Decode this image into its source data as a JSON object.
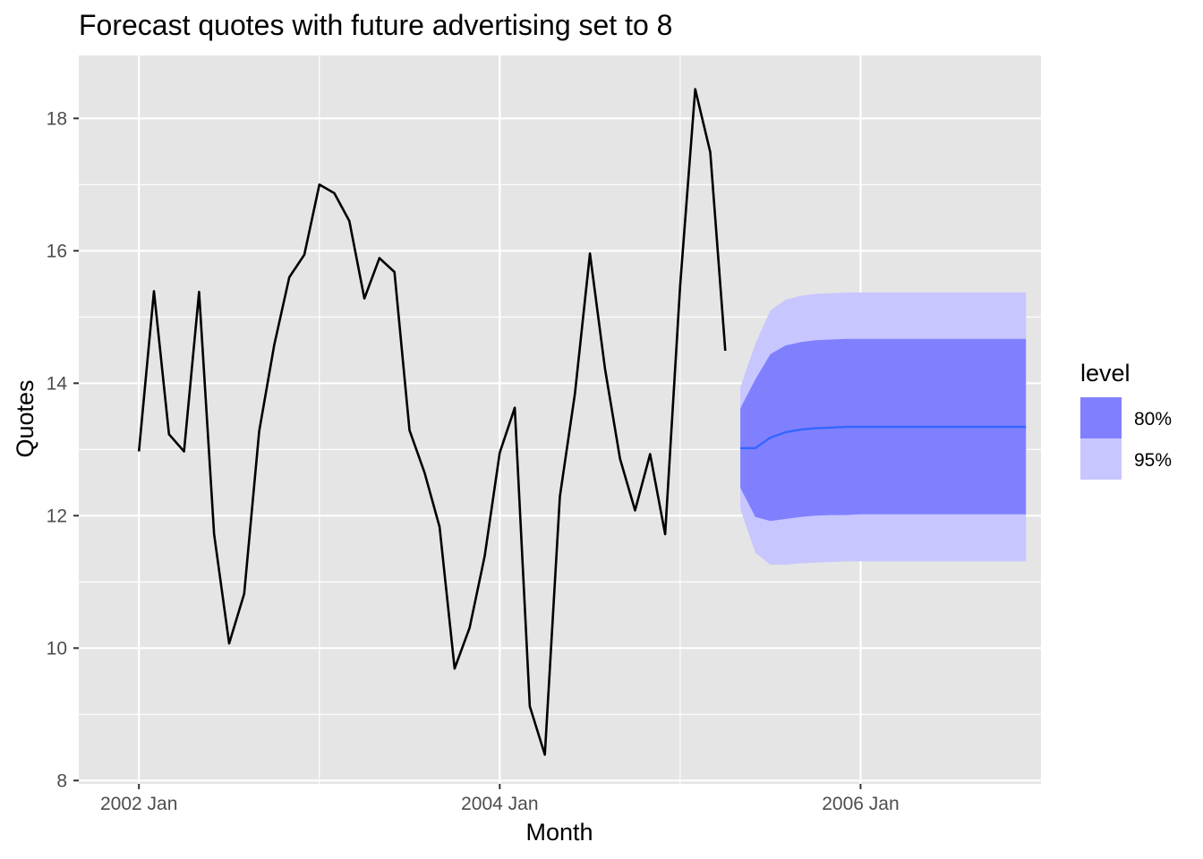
{
  "chart_data": {
    "type": "line",
    "title": "Forecast quotes with future advertising set to 8",
    "xlabel": "Month",
    "ylabel": "Quotes",
    "x_ticks": [
      "2002 Jan",
      "2004 Jan",
      "2006 Jan"
    ],
    "y_ticks": [
      "8",
      "10",
      "12",
      "14",
      "16",
      "18"
    ],
    "ylim": [
      7.95,
      18.95
    ],
    "xlim": [
      "2001 Sep",
      "2007 Jan"
    ],
    "grid": true,
    "legend": {
      "title": "level",
      "position": "right",
      "entries": [
        {
          "label": "80%",
          "color": "#8080ff"
        },
        {
          "label": "95%",
          "color": "#c8c6ff"
        }
      ]
    },
    "series": [
      {
        "color": "#000000",
        "x": [
          "2002 Jan",
          "2002 Feb",
          "2002 Mar",
          "2002 Apr",
          "2002 May",
          "2002 Jun",
          "2002 Jul",
          "2002 Aug",
          "2002 Sep",
          "2002 Oct",
          "2002 Nov",
          "2002 Dec",
          "2003 Jan",
          "2003 Feb",
          "2003 Mar",
          "2003 Apr",
          "2003 May",
          "2003 Jun",
          "2003 Jul",
          "2003 Aug",
          "2003 Sep",
          "2003 Oct",
          "2003 Nov",
          "2003 Dec",
          "2004 Jan",
          "2004 Feb",
          "2004 Mar",
          "2004 Apr",
          "2004 May",
          "2004 Jun",
          "2004 Jul",
          "2004 Aug",
          "2004 Sep",
          "2004 Oct",
          "2004 Nov",
          "2004 Dec",
          "2005 Jan",
          "2005 Feb",
          "2005 Mar",
          "2005 Apr"
        ],
        "values": [
          12.97,
          15.39,
          13.23,
          12.97,
          15.38,
          11.72,
          10.07,
          10.82,
          13.28,
          14.58,
          15.6,
          15.94,
          17.0,
          16.87,
          16.45,
          15.28,
          15.89,
          15.68,
          13.29,
          12.65,
          11.83,
          9.69,
          10.31,
          11.39,
          12.95,
          13.63,
          9.12,
          8.39,
          12.29,
          13.84,
          15.96,
          14.22,
          12.86,
          12.08,
          12.93,
          11.72,
          15.48,
          18.44,
          17.49,
          14.49
        ]
      },
      {
        "color": "#3366ff",
        "x": [
          "2005 May",
          "2005 Jun",
          "2005 Jul",
          "2005 Aug",
          "2005 Sep",
          "2005 Oct",
          "2005 Nov",
          "2005 Dec",
          "2006 Jan",
          "2006 Feb",
          "2006 Mar",
          "2006 Apr",
          "2006 May",
          "2006 Jun",
          "2006 Jul",
          "2006 Aug",
          "2006 Sep",
          "2006 Oct",
          "2006 Nov",
          "2006 Dec"
        ],
        "values": [
          13.02,
          13.02,
          13.18,
          13.26,
          13.3,
          13.32,
          13.33,
          13.34,
          13.34,
          13.34,
          13.34,
          13.34,
          13.34,
          13.34,
          13.34,
          13.34,
          13.34,
          13.34,
          13.34,
          13.34
        ],
        "lower_80": [
          12.42,
          11.98,
          11.92,
          11.95,
          11.98,
          12.0,
          12.01,
          12.01,
          12.02,
          12.02,
          12.02,
          12.02,
          12.02,
          12.02,
          12.02,
          12.02,
          12.02,
          12.02,
          12.02,
          12.02
        ],
        "upper_80": [
          13.62,
          14.06,
          14.44,
          14.57,
          14.62,
          14.65,
          14.66,
          14.67,
          14.67,
          14.67,
          14.67,
          14.67,
          14.67,
          14.67,
          14.67,
          14.67,
          14.67,
          14.67,
          14.67,
          14.67
        ],
        "lower_95": [
          12.1,
          11.44,
          11.26,
          11.26,
          11.28,
          11.29,
          11.3,
          11.31,
          11.31,
          11.31,
          11.31,
          11.31,
          11.31,
          11.31,
          11.31,
          11.31,
          11.31,
          11.31,
          11.31,
          11.31
        ],
        "upper_95": [
          13.94,
          14.6,
          15.1,
          15.26,
          15.32,
          15.35,
          15.36,
          15.37,
          15.37,
          15.37,
          15.37,
          15.37,
          15.37,
          15.37,
          15.37,
          15.37,
          15.37,
          15.37,
          15.37,
          15.37
        ]
      }
    ]
  }
}
